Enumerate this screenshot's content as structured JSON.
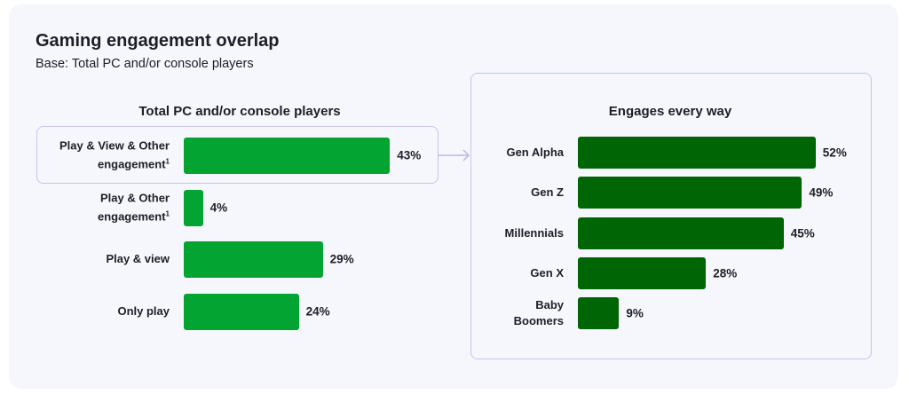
{
  "title": "Gaming engagement overlap",
  "subtitle": "Base: Total PC and/or console players",
  "chart_data": [
    {
      "type": "bar",
      "orientation": "horizontal",
      "title": "Total PC and/or console players",
      "categories": [
        "Play & View & Other engagement¹",
        "Play & Other engagement¹",
        "Play & view",
        "Only play"
      ],
      "labels": [
        [
          "Play & View & Other",
          "engagement¹"
        ],
        [
          "Play & Other",
          "engagement¹"
        ],
        [
          "Play & view"
        ],
        [
          "Only play"
        ]
      ],
      "values": [
        43,
        4,
        29,
        24
      ],
      "value_labels": [
        "43%",
        "4%",
        "29%",
        "24%"
      ],
      "unit": "%",
      "color": "#04a432",
      "highlighted": "Play & View & Other engagement¹"
    },
    {
      "type": "bar",
      "orientation": "horizontal",
      "title": "Engages every way",
      "categories": [
        "Gen Alpha",
        "Gen Z",
        "Millennials",
        "Gen X",
        "Baby Boomers"
      ],
      "labels": [
        [
          "Gen Alpha"
        ],
        [
          "Gen Z"
        ],
        [
          "Millennials"
        ],
        [
          "Gen X"
        ],
        [
          "Baby",
          "Boomers"
        ]
      ],
      "values": [
        52,
        49,
        45,
        28,
        9
      ],
      "value_labels": [
        "52%",
        "49%",
        "45%",
        "28%",
        "9%"
      ],
      "unit": "%",
      "color": "#006505"
    }
  ]
}
